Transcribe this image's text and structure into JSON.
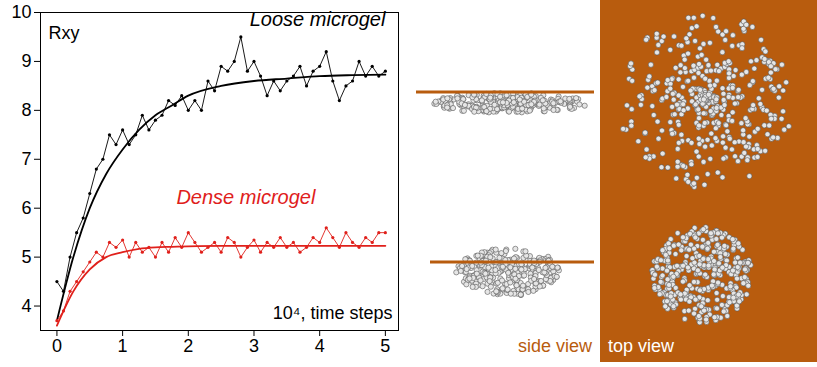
{
  "chart_data": {
    "type": "line",
    "ylabel": "Rxy",
    "xlabel": "10⁴, time steps",
    "xlim": [
      -0.25,
      5.2
    ],
    "ylim": [
      3.5,
      10
    ],
    "xticks": [
      0,
      1,
      2,
      3,
      4,
      5
    ],
    "yticks": [
      4,
      5,
      6,
      7,
      8,
      9,
      10
    ],
    "x": [
      0,
      0.1,
      0.2,
      0.3,
      0.4,
      0.5,
      0.6,
      0.7,
      0.8,
      0.9,
      1.0,
      1.1,
      1.2,
      1.3,
      1.4,
      1.5,
      1.6,
      1.7,
      1.8,
      1.9,
      2.0,
      2.1,
      2.2,
      2.3,
      2.4,
      2.5,
      2.6,
      2.7,
      2.8,
      2.9,
      3.0,
      3.1,
      3.2,
      3.3,
      3.4,
      3.5,
      3.6,
      3.7,
      3.8,
      3.9,
      4.0,
      4.1,
      4.2,
      4.3,
      4.4,
      4.5,
      4.6,
      4.7,
      4.8,
      4.9,
      5.0
    ],
    "fit_x": [
      0,
      0.25,
      0.5,
      0.75,
      1,
      1.25,
      1.5,
      1.75,
      2,
      2.5,
      3,
      3.5,
      4,
      4.5,
      5
    ],
    "series": [
      {
        "name": "Loose microgel",
        "color": "#000000",
        "marker": "dot",
        "values": [
          4.5,
          4.3,
          5.0,
          5.5,
          5.8,
          6.3,
          6.8,
          7.0,
          7.5,
          7.3,
          7.6,
          7.3,
          7.5,
          7.9,
          7.6,
          7.8,
          7.9,
          8.2,
          8.1,
          8.3,
          8.0,
          8.2,
          8.0,
          8.6,
          8.4,
          8.9,
          8.8,
          9.0,
          9.5,
          8.8,
          9.0,
          8.7,
          8.3,
          8.6,
          8.4,
          8.6,
          8.7,
          8.9,
          8.5,
          8.8,
          8.9,
          9.2,
          8.6,
          8.2,
          8.5,
          8.6,
          9.0,
          8.7,
          8.9,
          8.7,
          8.8
        ],
        "fit_values": [
          3.7,
          5.0,
          6.0,
          6.7,
          7.2,
          7.6,
          7.9,
          8.1,
          8.3,
          8.5,
          8.6,
          8.65,
          8.7,
          8.72,
          8.73
        ]
      },
      {
        "name": "Dense microgel",
        "color": "#e0201b",
        "marker": "dot",
        "values": [
          3.7,
          3.9,
          4.3,
          4.5,
          4.7,
          4.9,
          5.1,
          5.0,
          5.3,
          5.2,
          5.35,
          5.0,
          5.3,
          5.1,
          5.2,
          5.0,
          5.3,
          5.1,
          5.4,
          5.2,
          5.5,
          5.3,
          5.1,
          5.2,
          5.3,
          5.1,
          5.4,
          5.3,
          5.0,
          5.2,
          5.35,
          5.1,
          5.3,
          5.2,
          5.4,
          5.2,
          5.3,
          5.1,
          5.2,
          5.4,
          5.3,
          5.6,
          5.4,
          5.2,
          5.5,
          5.3,
          5.2,
          5.4,
          5.3,
          5.5,
          5.5
        ],
        "fit_values": [
          3.6,
          4.3,
          4.75,
          5.0,
          5.1,
          5.17,
          5.2,
          5.21,
          5.22,
          5.23,
          5.23,
          5.23,
          5.23,
          5.23,
          5.23
        ]
      }
    ]
  },
  "illustration": {
    "side_view_label": "side view",
    "top_view_label": "top view"
  }
}
